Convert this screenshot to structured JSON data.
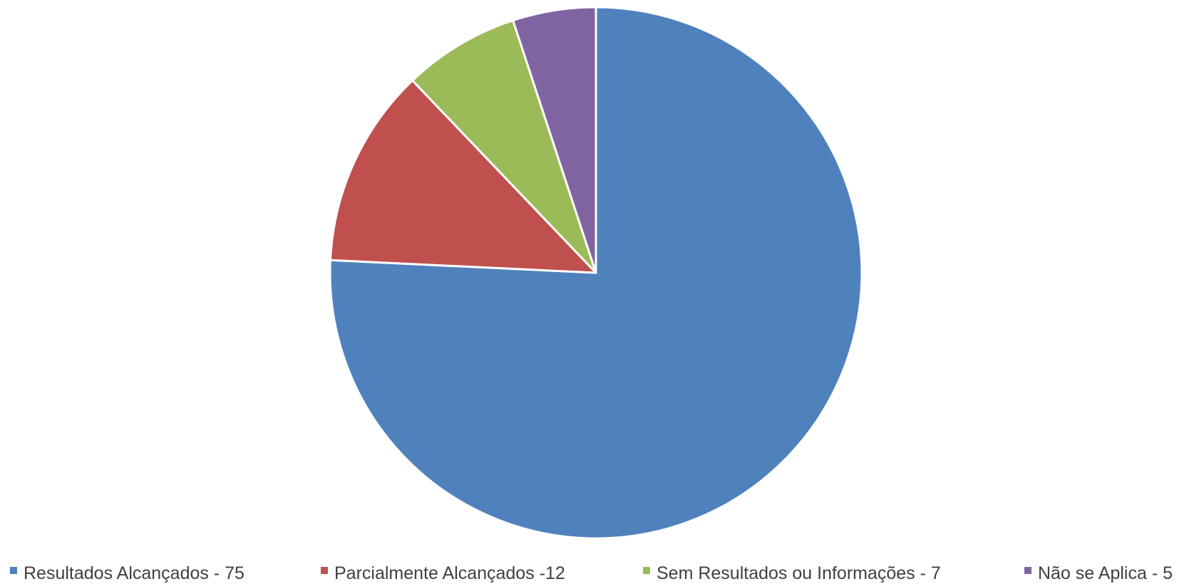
{
  "chart_data": {
    "type": "pie",
    "title": "",
    "categories": [
      "Resultados Alcançados - 75",
      "Parcialmente Alcançados -12",
      "Sem Resultados ou Informações - 7",
      "Não se Aplica - 5"
    ],
    "values": [
      75,
      12,
      7,
      5
    ],
    "colors": [
      "#4F81BD",
      "#C0504D",
      "#9BBB59",
      "#8064A2"
    ],
    "start_angle": "12 o'clock",
    "direction": "clockwise",
    "legend": {
      "position": "bottom",
      "entries": [
        {
          "label": "Resultados Alcançados - 75",
          "color": "#4F81BD"
        },
        {
          "label": "Parcialmente Alcançados -12",
          "color": "#C0504D"
        },
        {
          "label": "Sem Resultados ou Informações - 7",
          "color": "#9BBB59"
        },
        {
          "label": "Não se Aplica - 5",
          "color": "#8064A2"
        }
      ]
    }
  }
}
